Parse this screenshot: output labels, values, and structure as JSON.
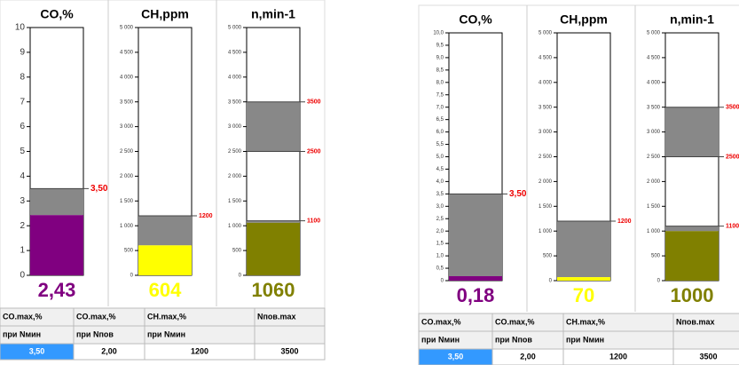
{
  "panels": [
    {
      "gauges": [
        {
          "title": "CO,%",
          "ylim": [
            0,
            10
          ],
          "yticks": [
            0,
            1,
            2,
            3,
            4,
            5,
            6,
            7,
            8,
            9,
            10
          ],
          "value": 2.43,
          "value_label": "2,43",
          "color": "#800080",
          "limits": [
            {
              "value": 3.5,
              "label": "3,50"
            }
          ]
        },
        {
          "title": "CH,ppm",
          "ylim": [
            0,
            5000
          ],
          "yticks": [
            0,
            {
              "value": 500,
              "label": "500"
            },
            {
              "value": 1000,
              "label": "1 000"
            },
            {
              "value": 1500,
              "label": "1 500"
            },
            {
              "value": 2000,
              "label": "2 000"
            },
            {
              "value": 2500,
              "label": "2 500"
            },
            {
              "value": 3000,
              "label": "3 000"
            },
            {
              "value": 3500,
              "label": "3 500"
            },
            {
              "value": 4000,
              "label": "4 000"
            },
            {
              "value": 4500,
              "label": "4 500"
            },
            {
              "value": 5000,
              "label": "5 000"
            }
          ],
          "value": 604,
          "value_label": "604",
          "color": "#ffff00",
          "limits": [
            {
              "value": 1200,
              "label": "1200"
            }
          ]
        },
        {
          "title": "n,min-1",
          "ylim": [
            0,
            5000
          ],
          "yticks": [
            0,
            {
              "value": 500,
              "label": "500"
            },
            {
              "value": 1000,
              "label": "1 000"
            },
            {
              "value": 1500,
              "label": "1 500"
            },
            {
              "value": 2000,
              "label": "2 000"
            },
            {
              "value": 2500,
              "label": "2 500"
            },
            {
              "value": 3000,
              "label": "3 000"
            },
            {
              "value": 3500,
              "label": "3 500"
            },
            {
              "value": 4000,
              "label": "4 000"
            },
            {
              "value": 4500,
              "label": "4 500"
            },
            {
              "value": 5000,
              "label": "5 000"
            }
          ],
          "value": 1060,
          "value_label": "1060",
          "color": "#808000",
          "limits": [
            {
              "value": 1100,
              "label": "1100"
            },
            {
              "value": 2500,
              "label": "2500"
            },
            {
              "value": 3500,
              "label": "3500"
            }
          ]
        }
      ],
      "table": {
        "header": [
          "CO.max,%",
          "CO.max,%",
          "CH.max,%",
          "Nпов.max"
        ],
        "sub": [
          "при Nмин",
          "при Nпов",
          "при Nмин"
        ],
        "values": [
          "3,50",
          "2,00",
          "1200",
          "3500"
        ]
      }
    },
    {
      "gauges": [
        {
          "title": "CO,%",
          "ylim": [
            0,
            10
          ],
          "yticks": [
            0,
            {
              "value": 0.5,
              "label": "0,5"
            },
            {
              "value": 1,
              "label": "1,0"
            },
            {
              "value": 1.5,
              "label": "1,5"
            },
            {
              "value": 2,
              "label": "2,0"
            },
            {
              "value": 2.5,
              "label": "2,5"
            },
            {
              "value": 3,
              "label": "3,0"
            },
            {
              "value": 3.5,
              "label": "3,5"
            },
            {
              "value": 4,
              "label": "4,0"
            },
            {
              "value": 4.5,
              "label": "4,5"
            },
            {
              "value": 5,
              "label": "5,0"
            },
            {
              "value": 5.5,
              "label": "5,5"
            },
            {
              "value": 6,
              "label": "6,0"
            },
            {
              "value": 6.5,
              "label": "6,5"
            },
            {
              "value": 7,
              "label": "7,0"
            },
            {
              "value": 7.5,
              "label": "7,5"
            },
            {
              "value": 8,
              "label": "8,0"
            },
            {
              "value": 8.5,
              "label": "8,5"
            },
            {
              "value": 9,
              "label": "9,0"
            },
            {
              "value": 9.5,
              "label": "9,5"
            },
            {
              "value": 10,
              "label": "10,0"
            }
          ],
          "value": 0.18,
          "value_label": "0,18",
          "color": "#800080",
          "limits": [
            {
              "value": 3.5,
              "label": "3,50"
            }
          ]
        },
        {
          "title": "CH,ppm",
          "ylim": [
            0,
            5000
          ],
          "yticks": [
            0,
            {
              "value": 500,
              "label": "500"
            },
            {
              "value": 1000,
              "label": "1 000"
            },
            {
              "value": 1500,
              "label": "1 500"
            },
            {
              "value": 2000,
              "label": "2 000"
            },
            {
              "value": 2500,
              "label": "2 500"
            },
            {
              "value": 3000,
              "label": "3 000"
            },
            {
              "value": 3500,
              "label": "3 500"
            },
            {
              "value": 4000,
              "label": "4 000"
            },
            {
              "value": 4500,
              "label": "4 500"
            },
            {
              "value": 5000,
              "label": "5 000"
            }
          ],
          "value": 70,
          "value_label": "70",
          "color": "#ffff00",
          "limits": [
            {
              "value": 1200,
              "label": "1200"
            }
          ]
        },
        {
          "title": "n,min-1",
          "ylim": [
            0,
            5000
          ],
          "yticks": [
            0,
            {
              "value": 500,
              "label": "500"
            },
            {
              "value": 1000,
              "label": "1 000"
            },
            {
              "value": 1500,
              "label": "1 500"
            },
            {
              "value": 2000,
              "label": "2 000"
            },
            {
              "value": 2500,
              "label": "2 500"
            },
            {
              "value": 3000,
              "label": "3 000"
            },
            {
              "value": 3500,
              "label": "3 500"
            },
            {
              "value": 4000,
              "label": "4 000"
            },
            {
              "value": 4500,
              "label": "4 500"
            },
            {
              "value": 5000,
              "label": "5 000"
            }
          ],
          "value": 1000,
          "value_label": "1000",
          "color": "#808000",
          "limits": [
            {
              "value": 1100,
              "label": "1100"
            },
            {
              "value": 2500,
              "label": "2500"
            },
            {
              "value": 3500,
              "label": "3500"
            }
          ]
        }
      ],
      "table": {
        "header": [
          "CO.max,%",
          "CO.max,%",
          "CH.max,%",
          "Nпов.max"
        ],
        "sub": [
          "при Nмин",
          "при Nпов",
          "при Nмин"
        ],
        "values": [
          "3,50",
          "2,00",
          "1200",
          "3500"
        ]
      }
    }
  ]
}
